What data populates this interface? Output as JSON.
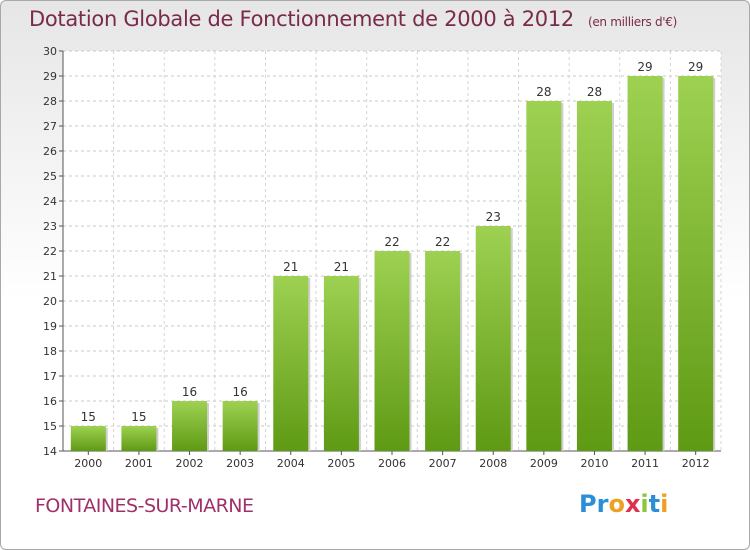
{
  "chart_data": {
    "type": "bar",
    "title": "Dotation Globale de Fonctionnement de 2000 à 2012",
    "subtitle": "(en milliers d'€)",
    "categories": [
      "2000",
      "2001",
      "2002",
      "2003",
      "2004",
      "2005",
      "2006",
      "2007",
      "2008",
      "2009",
      "2010",
      "2011",
      "2012"
    ],
    "values": [
      15,
      15,
      16,
      16,
      21,
      21,
      22,
      22,
      23,
      28,
      28,
      29,
      29
    ],
    "ylim": [
      14,
      30
    ],
    "yticks": [
      14,
      15,
      16,
      17,
      18,
      19,
      20,
      21,
      22,
      23,
      24,
      25,
      26,
      27,
      28,
      29,
      30
    ],
    "grid": true,
    "bar_color": "#7dbb2e"
  },
  "place_name": "FONTAINES-SUR-MARNE",
  "logo": {
    "letters": [
      "P",
      "r",
      "o",
      "x",
      "i",
      "t",
      "i"
    ],
    "colors": [
      "#2b8fd8",
      "#2b8fd8",
      "#f0a020",
      "#e03050",
      "#8cc63f",
      "#2b8fd8",
      "#f0a020"
    ]
  }
}
